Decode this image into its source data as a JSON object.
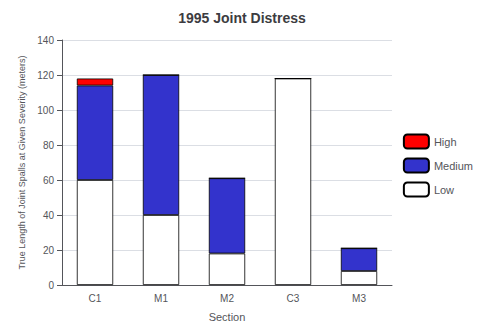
{
  "chart_data": {
    "type": "bar",
    "title": "1995 Joint Distress",
    "xlabel": "Section",
    "ylabel": "True Length of Joint Spalls at Given Severity (meters)",
    "categories": [
      "C1",
      "M1",
      "M2",
      "C3",
      "M3"
    ],
    "series": [
      {
        "name": "Low",
        "color": "#ffffff",
        "values": [
          60,
          40,
          18,
          118,
          8
        ]
      },
      {
        "name": "Medium",
        "color": "#3333cc",
        "values": [
          54,
          80,
          43,
          0,
          13
        ]
      },
      {
        "name": "High",
        "color": "#ff0000",
        "values": [
          4,
          0,
          0,
          0,
          0
        ]
      }
    ],
    "ylim": [
      0,
      140
    ],
    "yticks": [
      0,
      20,
      40,
      60,
      80,
      100,
      120,
      140
    ],
    "stacked": true,
    "grid": true,
    "legend": "right"
  }
}
